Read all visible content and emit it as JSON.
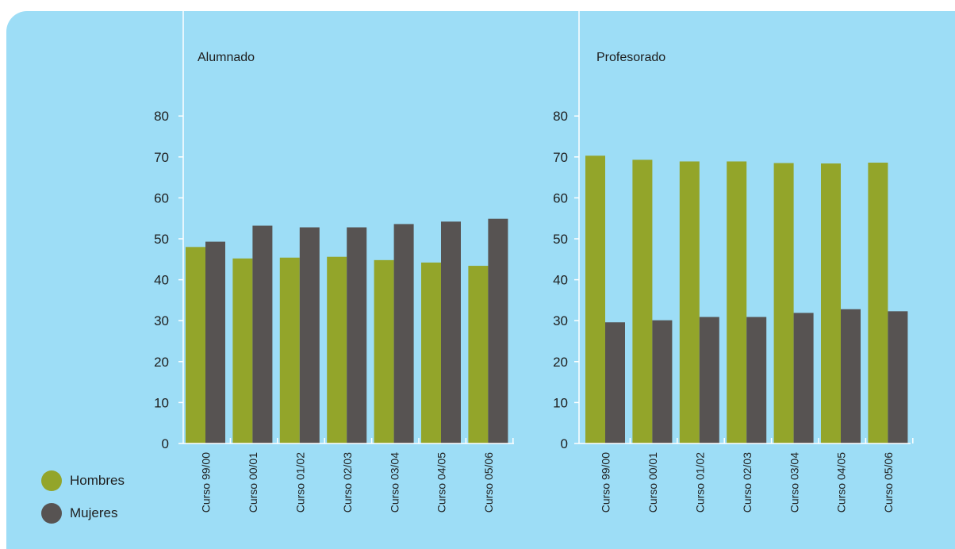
{
  "colors": {
    "background": "#9dddf6",
    "hombres": "#93a52a",
    "mujeres": "#575352",
    "axis": "#ffffff",
    "text": "#1e1e1e"
  },
  "legend": [
    {
      "label": "Hombres",
      "color": "#93a52a"
    },
    {
      "label": "Mujeres",
      "color": "#575352"
    }
  ],
  "chart_data": [
    {
      "type": "bar",
      "title": "Alumnado",
      "categories": [
        "Curso 99/00",
        "Curso 00/01",
        "Curso 01/02",
        "Curso 02/03",
        "Curso 03/04",
        "Curso 04/05",
        "Curso 05/06"
      ],
      "series": [
        {
          "name": "Hombres",
          "values": [
            48,
            45.2,
            45.4,
            45.6,
            44.8,
            44.2,
            43.4
          ]
        },
        {
          "name": "Mujeres",
          "values": [
            49.3,
            53.2,
            52.8,
            52.8,
            53.6,
            54.2,
            54.9
          ]
        }
      ],
      "yticks": [
        0,
        10,
        20,
        30,
        40,
        50,
        60,
        70,
        80
      ],
      "ylim": [
        0,
        80
      ],
      "grid": false
    },
    {
      "type": "bar",
      "title": "Profesorado",
      "categories": [
        "Curso 99/00",
        "Curso 00/01",
        "Curso 01/02",
        "Curso 02/03",
        "Curso 03/04",
        "Curso 04/05",
        "Curso 05/06"
      ],
      "series": [
        {
          "name": "Hombres",
          "values": [
            70.3,
            69.3,
            68.9,
            68.9,
            68.5,
            68.4,
            68.6
          ]
        },
        {
          "name": "Mujeres",
          "values": [
            29.6,
            30.1,
            30.9,
            30.9,
            31.9,
            32.8,
            32.3
          ]
        }
      ],
      "yticks": [
        0,
        10,
        20,
        30,
        40,
        50,
        60,
        70,
        80
      ],
      "ylim": [
        0,
        80
      ],
      "grid": false
    }
  ]
}
